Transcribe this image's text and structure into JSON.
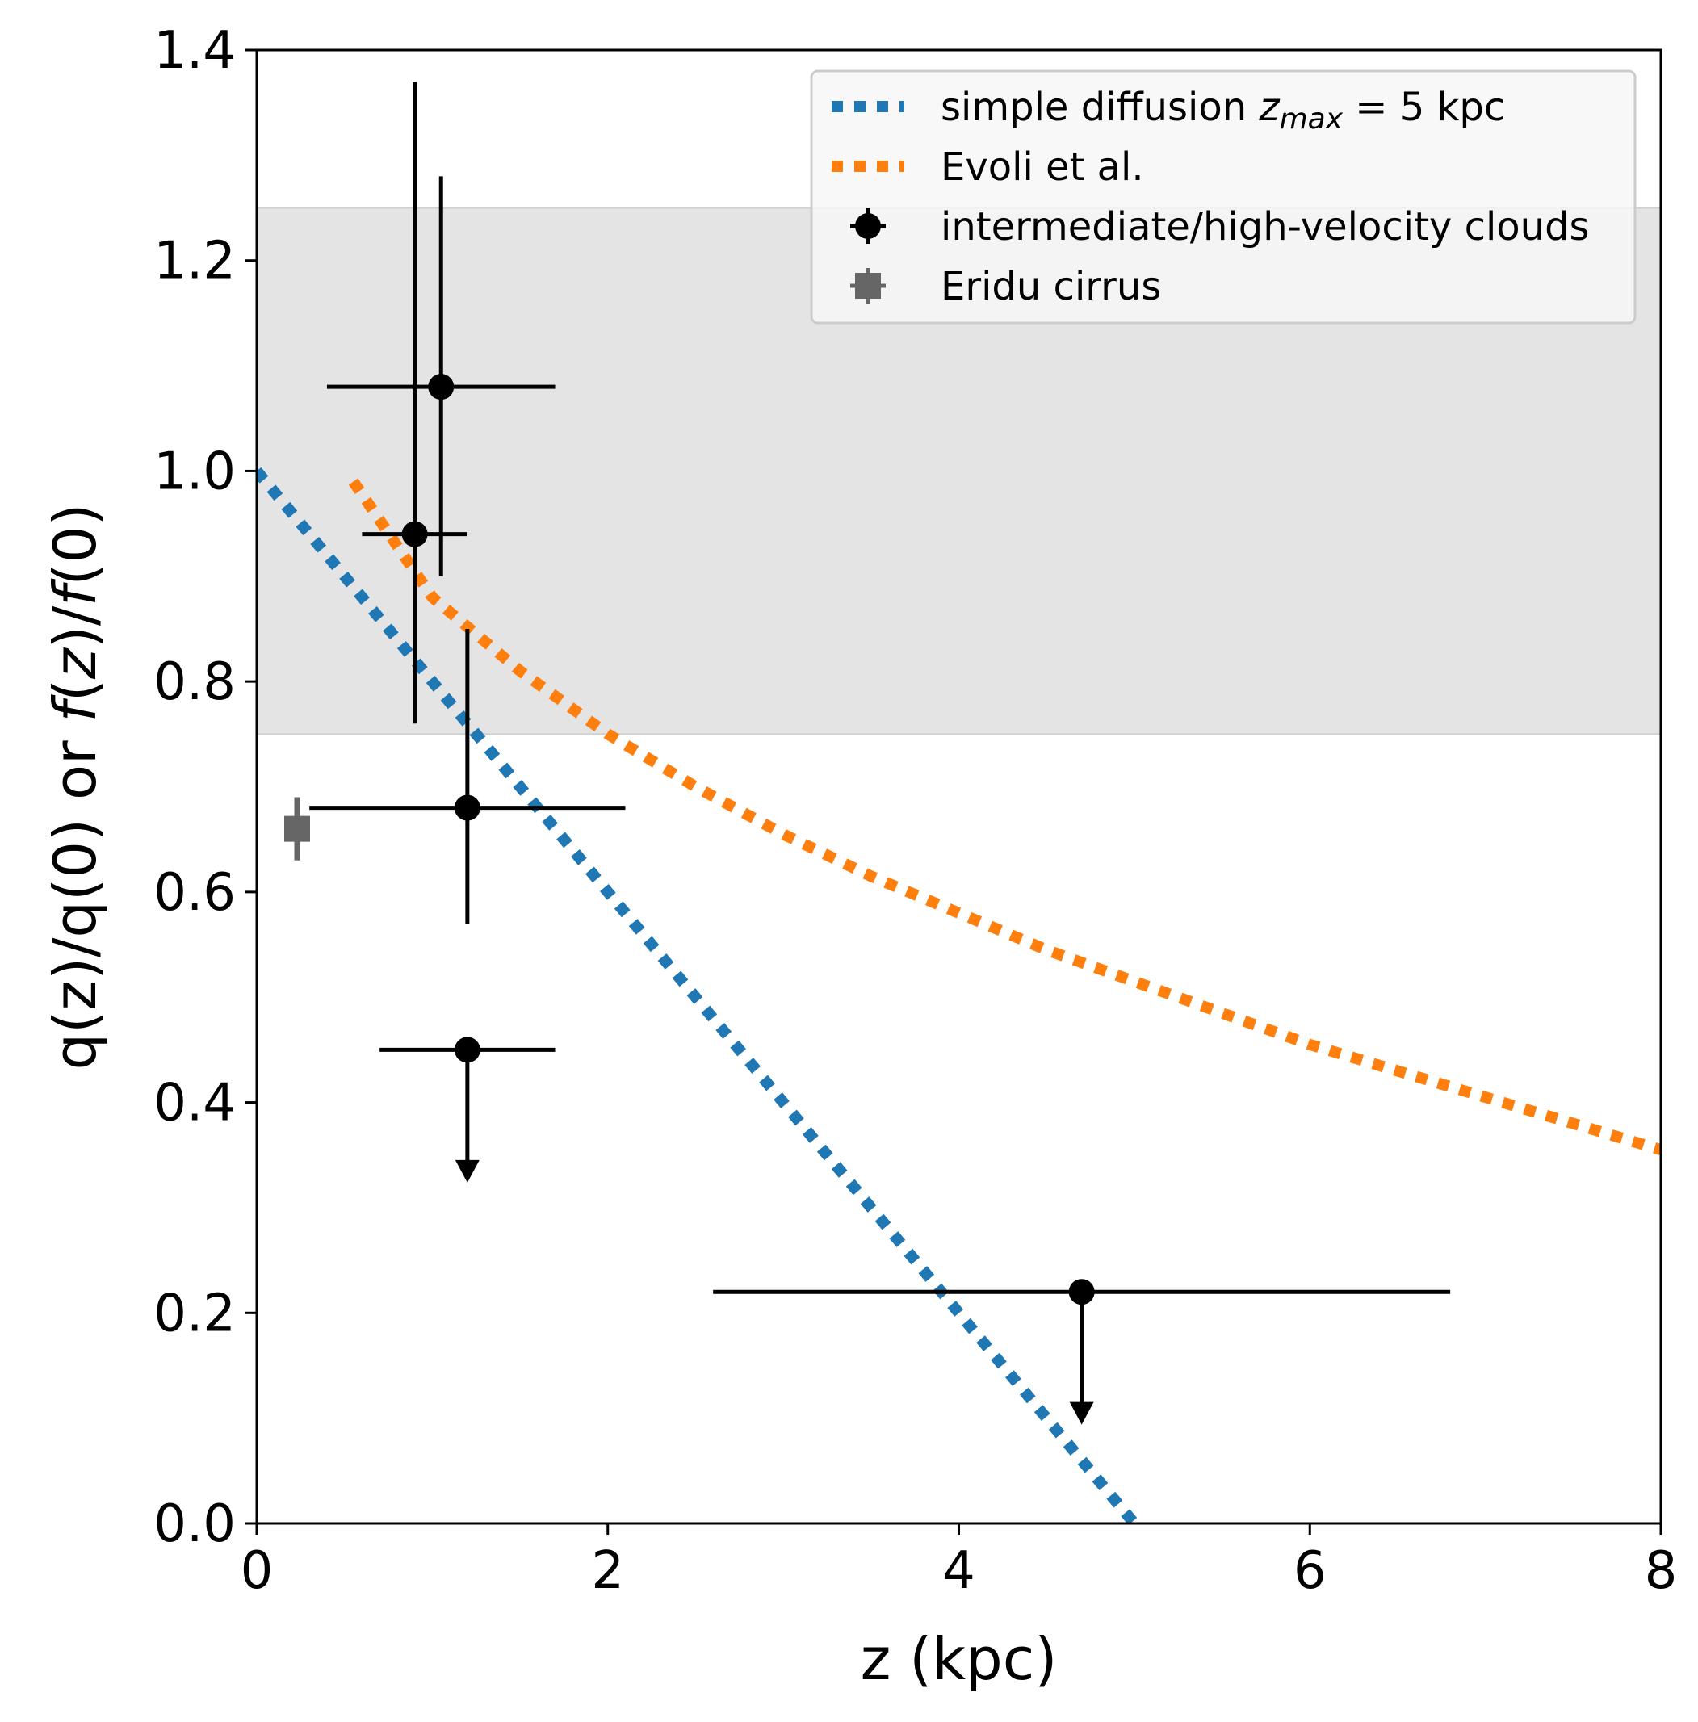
{
  "chart_data": {
    "type": "scatter",
    "xlabel": "z (kpc)",
    "ylabel_parts": [
      "q(z)/q(0) or ",
      "f",
      "(",
      "z",
      ")/",
      "f",
      "(0)"
    ],
    "xlim": [
      0,
      8
    ],
    "ylim": [
      0,
      1.4
    ],
    "xticks": [
      "0",
      "2",
      "4",
      "6",
      "8"
    ],
    "yticks": [
      "0.0",
      "0.2",
      "0.4",
      "0.6",
      "0.8",
      "1.0",
      "1.2",
      "1.4"
    ],
    "band": {
      "y0": 0.75,
      "y1": 1.25,
      "color": "#e4e4e4"
    },
    "series": [
      {
        "name": "simple diffusion",
        "legend_label": [
          "simple diffusion ",
          "z",
          "max",
          " = 5 kpc"
        ],
        "kind": "line",
        "style": "dotted",
        "color": "#1f77b4",
        "x": [
          0,
          5
        ],
        "y": [
          1.0,
          0.0
        ]
      },
      {
        "name": "Evoli et al.",
        "legend_label": [
          "Evoli et al."
        ],
        "kind": "line",
        "style": "dotted",
        "color": "#ff7f0e",
        "x": [
          0.55,
          1.0,
          1.5,
          2.0,
          2.5,
          3.0,
          3.5,
          4.0,
          4.5,
          5.0,
          5.5,
          6.0,
          6.5,
          7.0,
          7.5,
          8.0
        ],
        "y": [
          0.99,
          0.88,
          0.81,
          0.75,
          0.7,
          0.655,
          0.615,
          0.58,
          0.545,
          0.515,
          0.485,
          0.455,
          0.43,
          0.405,
          0.38,
          0.355
        ]
      },
      {
        "name": "intermediate/high-velocity clouds",
        "legend_label": [
          "intermediate/high-velocity clouds"
        ],
        "kind": "errorbar",
        "color": "#000000",
        "points": [
          {
            "x": 1.05,
            "y": 1.08,
            "xerr": [
              0.65,
              0.65
            ],
            "yerr": [
              0.18,
              0.2
            ],
            "upper_limit": false
          },
          {
            "x": 0.9,
            "y": 0.94,
            "xerr": [
              0.3,
              0.3
            ],
            "yerr": [
              0.18,
              0.43
            ],
            "upper_limit": false
          },
          {
            "x": 1.2,
            "y": 0.68,
            "xerr": [
              0.9,
              0.9
            ],
            "yerr": [
              0.11,
              0.17
            ],
            "upper_limit": false
          },
          {
            "x": 1.2,
            "y": 0.45,
            "xerr": [
              0.5,
              0.5
            ],
            "yerr": [
              0,
              0
            ],
            "upper_limit": true
          },
          {
            "x": 4.7,
            "y": 0.22,
            "xerr": [
              2.1,
              2.1
            ],
            "yerr": [
              0,
              0
            ],
            "upper_limit": true
          }
        ]
      },
      {
        "name": "Eridu cirrus",
        "legend_label": [
          "Eridu cirrus"
        ],
        "kind": "errorbar",
        "marker": "square",
        "color": "#666666",
        "points": [
          {
            "x": 0.23,
            "y": 0.66,
            "xerr": [
              0.05,
              0.05
            ],
            "yerr": [
              0.03,
              0.03
            ],
            "upper_limit": false
          }
        ]
      }
    ],
    "legend_position": "top-right"
  }
}
